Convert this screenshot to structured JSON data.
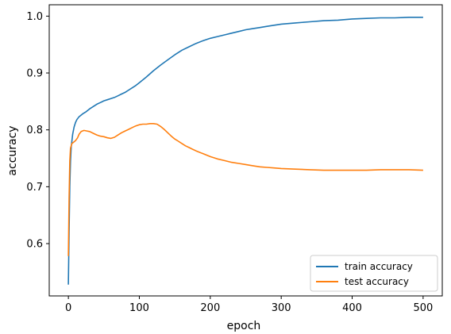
{
  "chart_data": {
    "type": "line",
    "xlabel": "epoch",
    "ylabel": "accuracy",
    "xlim": [
      -27,
      527
    ],
    "ylim": [
      0.508,
      1.02
    ],
    "xticks": [
      0,
      100,
      200,
      300,
      400,
      500
    ],
    "yticks": [
      0.6,
      0.7,
      0.8,
      0.9,
      1.0
    ],
    "ytick_labels": [
      "0.6",
      "0.7",
      "0.8",
      "0.9",
      "1.0"
    ],
    "legend_location": "lower right",
    "grid": false,
    "series": [
      {
        "name": "train accuracy",
        "color": "#1f77b4",
        "points": [
          [
            0,
            0.528
          ],
          [
            1,
            0.62
          ],
          [
            2,
            0.7
          ],
          [
            3,
            0.745
          ],
          [
            4,
            0.77
          ],
          [
            6,
            0.792
          ],
          [
            8,
            0.805
          ],
          [
            10,
            0.813
          ],
          [
            12,
            0.818
          ],
          [
            15,
            0.823
          ],
          [
            20,
            0.828
          ],
          [
            25,
            0.832
          ],
          [
            30,
            0.837
          ],
          [
            35,
            0.841
          ],
          [
            40,
            0.845
          ],
          [
            45,
            0.848
          ],
          [
            50,
            0.851
          ],
          [
            55,
            0.853
          ],
          [
            60,
            0.855
          ],
          [
            65,
            0.857
          ],
          [
            70,
            0.86
          ],
          [
            75,
            0.863
          ],
          [
            80,
            0.866
          ],
          [
            85,
            0.87
          ],
          [
            90,
            0.874
          ],
          [
            95,
            0.878
          ],
          [
            100,
            0.883
          ],
          [
            110,
            0.893
          ],
          [
            120,
            0.904
          ],
          [
            130,
            0.914
          ],
          [
            140,
            0.923
          ],
          [
            150,
            0.932
          ],
          [
            160,
            0.94
          ],
          [
            170,
            0.946
          ],
          [
            180,
            0.952
          ],
          [
            190,
            0.957
          ],
          [
            200,
            0.961
          ],
          [
            210,
            0.964
          ],
          [
            220,
            0.967
          ],
          [
            230,
            0.97
          ],
          [
            240,
            0.973
          ],
          [
            250,
            0.976
          ],
          [
            260,
            0.978
          ],
          [
            270,
            0.98
          ],
          [
            280,
            0.982
          ],
          [
            290,
            0.984
          ],
          [
            300,
            0.986
          ],
          [
            320,
            0.988
          ],
          [
            340,
            0.99
          ],
          [
            360,
            0.992
          ],
          [
            380,
            0.993
          ],
          [
            400,
            0.995
          ],
          [
            420,
            0.996
          ],
          [
            440,
            0.997
          ],
          [
            460,
            0.997
          ],
          [
            480,
            0.998
          ],
          [
            500,
            0.998
          ]
        ]
      },
      {
        "name": "test accuracy",
        "color": "#ff7f0e",
        "points": [
          [
            0,
            0.578
          ],
          [
            1,
            0.68
          ],
          [
            2,
            0.745
          ],
          [
            3,
            0.768
          ],
          [
            5,
            0.776
          ],
          [
            8,
            0.779
          ],
          [
            10,
            0.781
          ],
          [
            13,
            0.786
          ],
          [
            15,
            0.792
          ],
          [
            18,
            0.797
          ],
          [
            22,
            0.799
          ],
          [
            26,
            0.798
          ],
          [
            30,
            0.797
          ],
          [
            35,
            0.794
          ],
          [
            40,
            0.791
          ],
          [
            45,
            0.789
          ],
          [
            50,
            0.788
          ],
          [
            55,
            0.786
          ],
          [
            60,
            0.785
          ],
          [
            65,
            0.787
          ],
          [
            70,
            0.791
          ],
          [
            75,
            0.795
          ],
          [
            80,
            0.798
          ],
          [
            85,
            0.801
          ],
          [
            90,
            0.804
          ],
          [
            95,
            0.807
          ],
          [
            100,
            0.809
          ],
          [
            105,
            0.81
          ],
          [
            110,
            0.81
          ],
          [
            115,
            0.811
          ],
          [
            120,
            0.811
          ],
          [
            125,
            0.81
          ],
          [
            130,
            0.806
          ],
          [
            135,
            0.801
          ],
          [
            140,
            0.795
          ],
          [
            145,
            0.789
          ],
          [
            150,
            0.784
          ],
          [
            155,
            0.78
          ],
          [
            160,
            0.776
          ],
          [
            165,
            0.772
          ],
          [
            170,
            0.769
          ],
          [
            175,
            0.766
          ],
          [
            180,
            0.763
          ],
          [
            190,
            0.758
          ],
          [
            200,
            0.753
          ],
          [
            210,
            0.749
          ],
          [
            220,
            0.746
          ],
          [
            230,
            0.743
          ],
          [
            240,
            0.741
          ],
          [
            250,
            0.739
          ],
          [
            260,
            0.737
          ],
          [
            270,
            0.735
          ],
          [
            280,
            0.734
          ],
          [
            290,
            0.733
          ],
          [
            300,
            0.732
          ],
          [
            320,
            0.731
          ],
          [
            340,
            0.73
          ],
          [
            360,
            0.729
          ],
          [
            380,
            0.729
          ],
          [
            400,
            0.729
          ],
          [
            420,
            0.729
          ],
          [
            440,
            0.73
          ],
          [
            460,
            0.73
          ],
          [
            480,
            0.73
          ],
          [
            500,
            0.729
          ]
        ]
      }
    ]
  }
}
